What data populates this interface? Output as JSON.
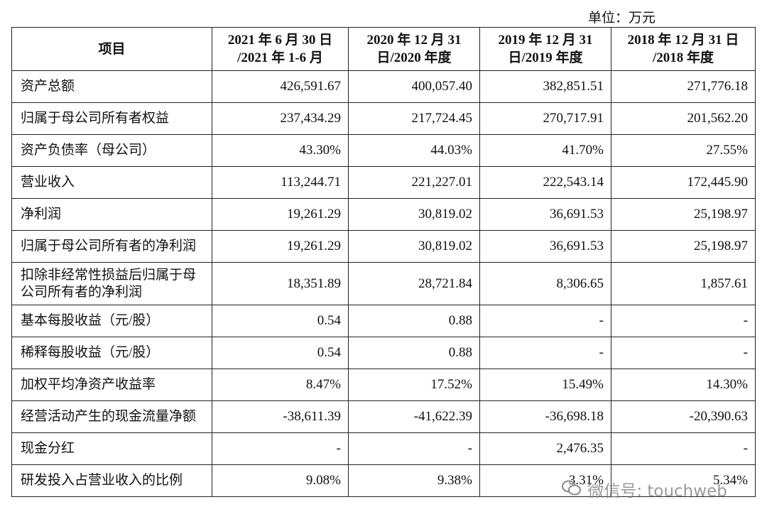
{
  "header": {
    "unit": "单位：万元"
  },
  "table": {
    "columns": [
      [
        "项目"
      ],
      [
        "2021 年 6 月 30 日",
        "/2021 年 1-6 月"
      ],
      [
        "2020 年 12 月 31",
        "日/2020 年度"
      ],
      [
        "2019 年 12 月 31",
        "日/2019 年度"
      ],
      [
        "2018 年 12 月 31 日",
        "/2018 年度"
      ]
    ],
    "rows": [
      [
        "资产总额",
        "426,591.67",
        "400,057.40",
        "382,851.51",
        "271,776.18"
      ],
      [
        "归属于母公司所有者权益",
        "237,434.29",
        "217,724.45",
        "270,717.91",
        "201,562.20"
      ],
      [
        "资产负债率（母公司）",
        "43.30%",
        "44.03%",
        "41.70%",
        "27.55%"
      ],
      [
        "营业收入",
        "113,244.71",
        "221,227.01",
        "222,543.14",
        "172,445.90"
      ],
      [
        "净利润",
        "19,261.29",
        "30,819.02",
        "36,691.53",
        "25,198.97"
      ],
      [
        "归属于母公司所有者的净利润",
        "19,261.29",
        "30,819.02",
        "36,691.53",
        "25,198.97"
      ],
      [
        "扣除非经常性损益后归属于母公司所有者的净利润",
        "18,351.89",
        "28,721.84",
        "8,306.65",
        "1,857.61"
      ],
      [
        "基本每股收益（元/股）",
        "0.54",
        "0.88",
        "-",
        "-"
      ],
      [
        "稀释每股收益（元/股）",
        "0.54",
        "0.88",
        "-",
        "-"
      ],
      [
        "加权平均净资产收益率",
        "8.47%",
        "17.52%",
        "15.49%",
        "14.30%"
      ],
      [
        "经营活动产生的现金流量净额",
        "-38,611.39",
        "-41,622.39",
        "-36,698.18",
        "-20,390.63"
      ],
      [
        "现金分红",
        "-",
        "-",
        "2,476.35",
        "-"
      ],
      [
        "研发投入占营业收入的比例",
        "9.08%",
        "9.38%",
        "3.31%",
        "5.34%"
      ]
    ]
  },
  "watermark": "微信号: touchweb"
}
